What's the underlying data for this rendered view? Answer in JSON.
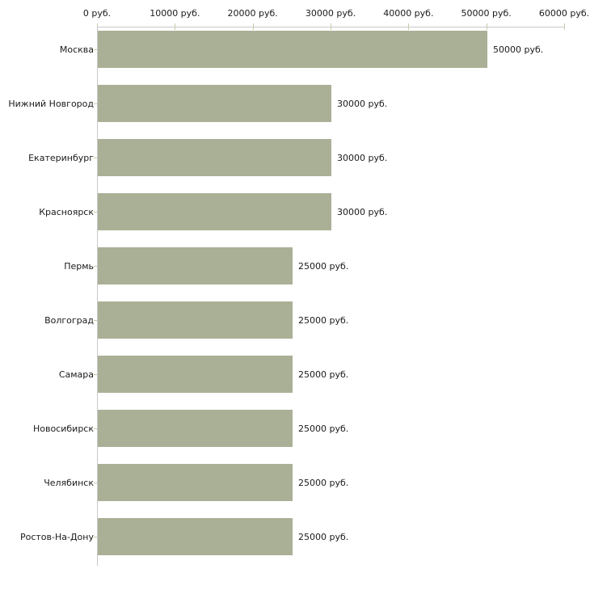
{
  "chart_data": {
    "type": "bar",
    "orientation": "horizontal",
    "unit": "руб.",
    "categories": [
      "Москва",
      "Нижний Новгород",
      "Екатеринбург",
      "Красноярск",
      "Пермь",
      "Волгоград",
      "Самара",
      "Новосибирск",
      "Челябинск",
      "Ростов-На-Дону"
    ],
    "values": [
      50000,
      30000,
      30000,
      30000,
      25000,
      25000,
      25000,
      25000,
      25000,
      25000
    ],
    "value_labels": [
      "50000 руб.",
      "30000 руб.",
      "30000 руб.",
      "30000 руб.",
      "25000 руб.",
      "25000 руб.",
      "25000 руб.",
      "25000 руб.",
      "25000 руб.",
      "25000 руб."
    ],
    "xlim": [
      0,
      60000
    ],
    "x_tick_values": [
      0,
      10000,
      20000,
      30000,
      40000,
      50000,
      60000
    ],
    "x_tick_labels": [
      "0 руб.",
      "10000 руб.",
      "20000 руб.",
      "30000 руб.",
      "40000 руб.",
      "50000 руб.",
      "60000 руб."
    ],
    "grid": false,
    "legend": false,
    "colors": {
      "bar": "#aab096",
      "axis_line": "#c9c9c9",
      "tick": "#cccbaa",
      "text": "#1a1a1a",
      "background": "#ffffff"
    }
  }
}
